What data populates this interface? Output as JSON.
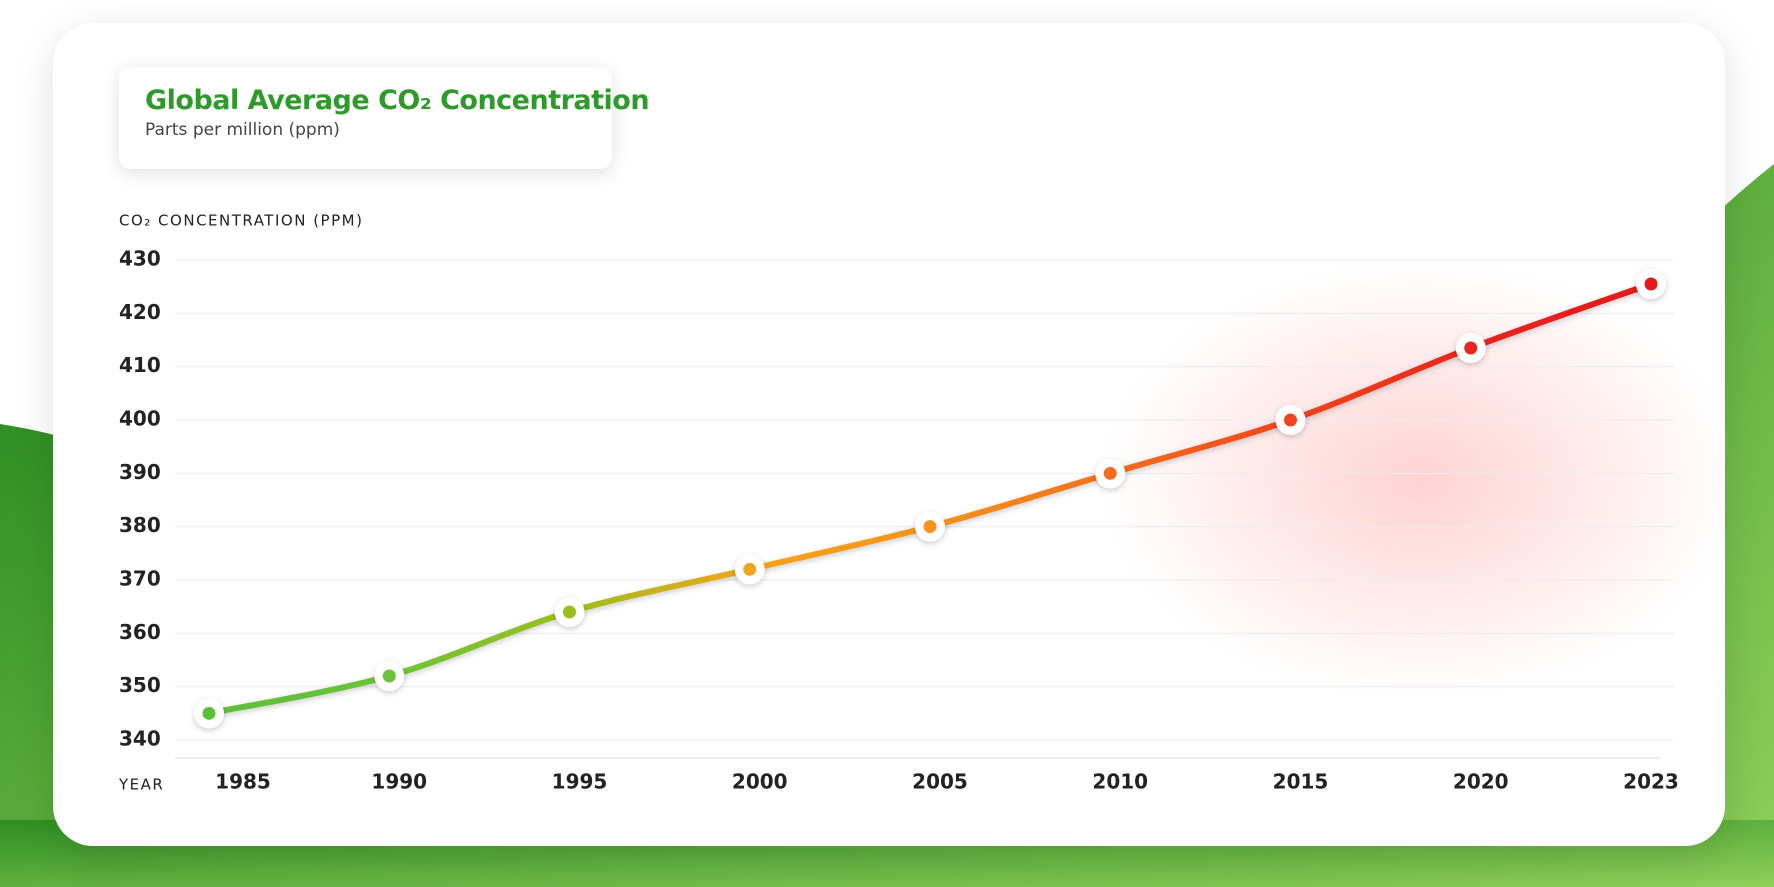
{
  "chart_data": {
    "type": "line",
    "title": "Global Average CO₂ Concentration",
    "subtitle": "Parts per million (ppm)",
    "y_label": "CO₂ CONCENTRATION (PPM)",
    "x_label": "YEAR",
    "categories": [
      "1985",
      "1990",
      "1995",
      "2000",
      "2005",
      "2010",
      "2015",
      "2020",
      "2023"
    ],
    "series": [
      {
        "name": "CO₂",
        "values": [
          345,
          352,
          364,
          372,
          380,
          390,
          400,
          413.5,
          425.5
        ],
        "point_colors": [
          "#5cbf3a",
          "#6cc23a",
          "#9cbf1c",
          "#f2a41c",
          "#f7931e",
          "#f36f1e",
          "#f0451e",
          "#e8251f",
          "#e31a1c"
        ]
      }
    ],
    "ylim": [
      340,
      430
    ],
    "yticks": [
      340,
      350,
      360,
      370,
      380,
      390,
      400,
      410,
      420,
      430
    ],
    "grid": true
  }
}
